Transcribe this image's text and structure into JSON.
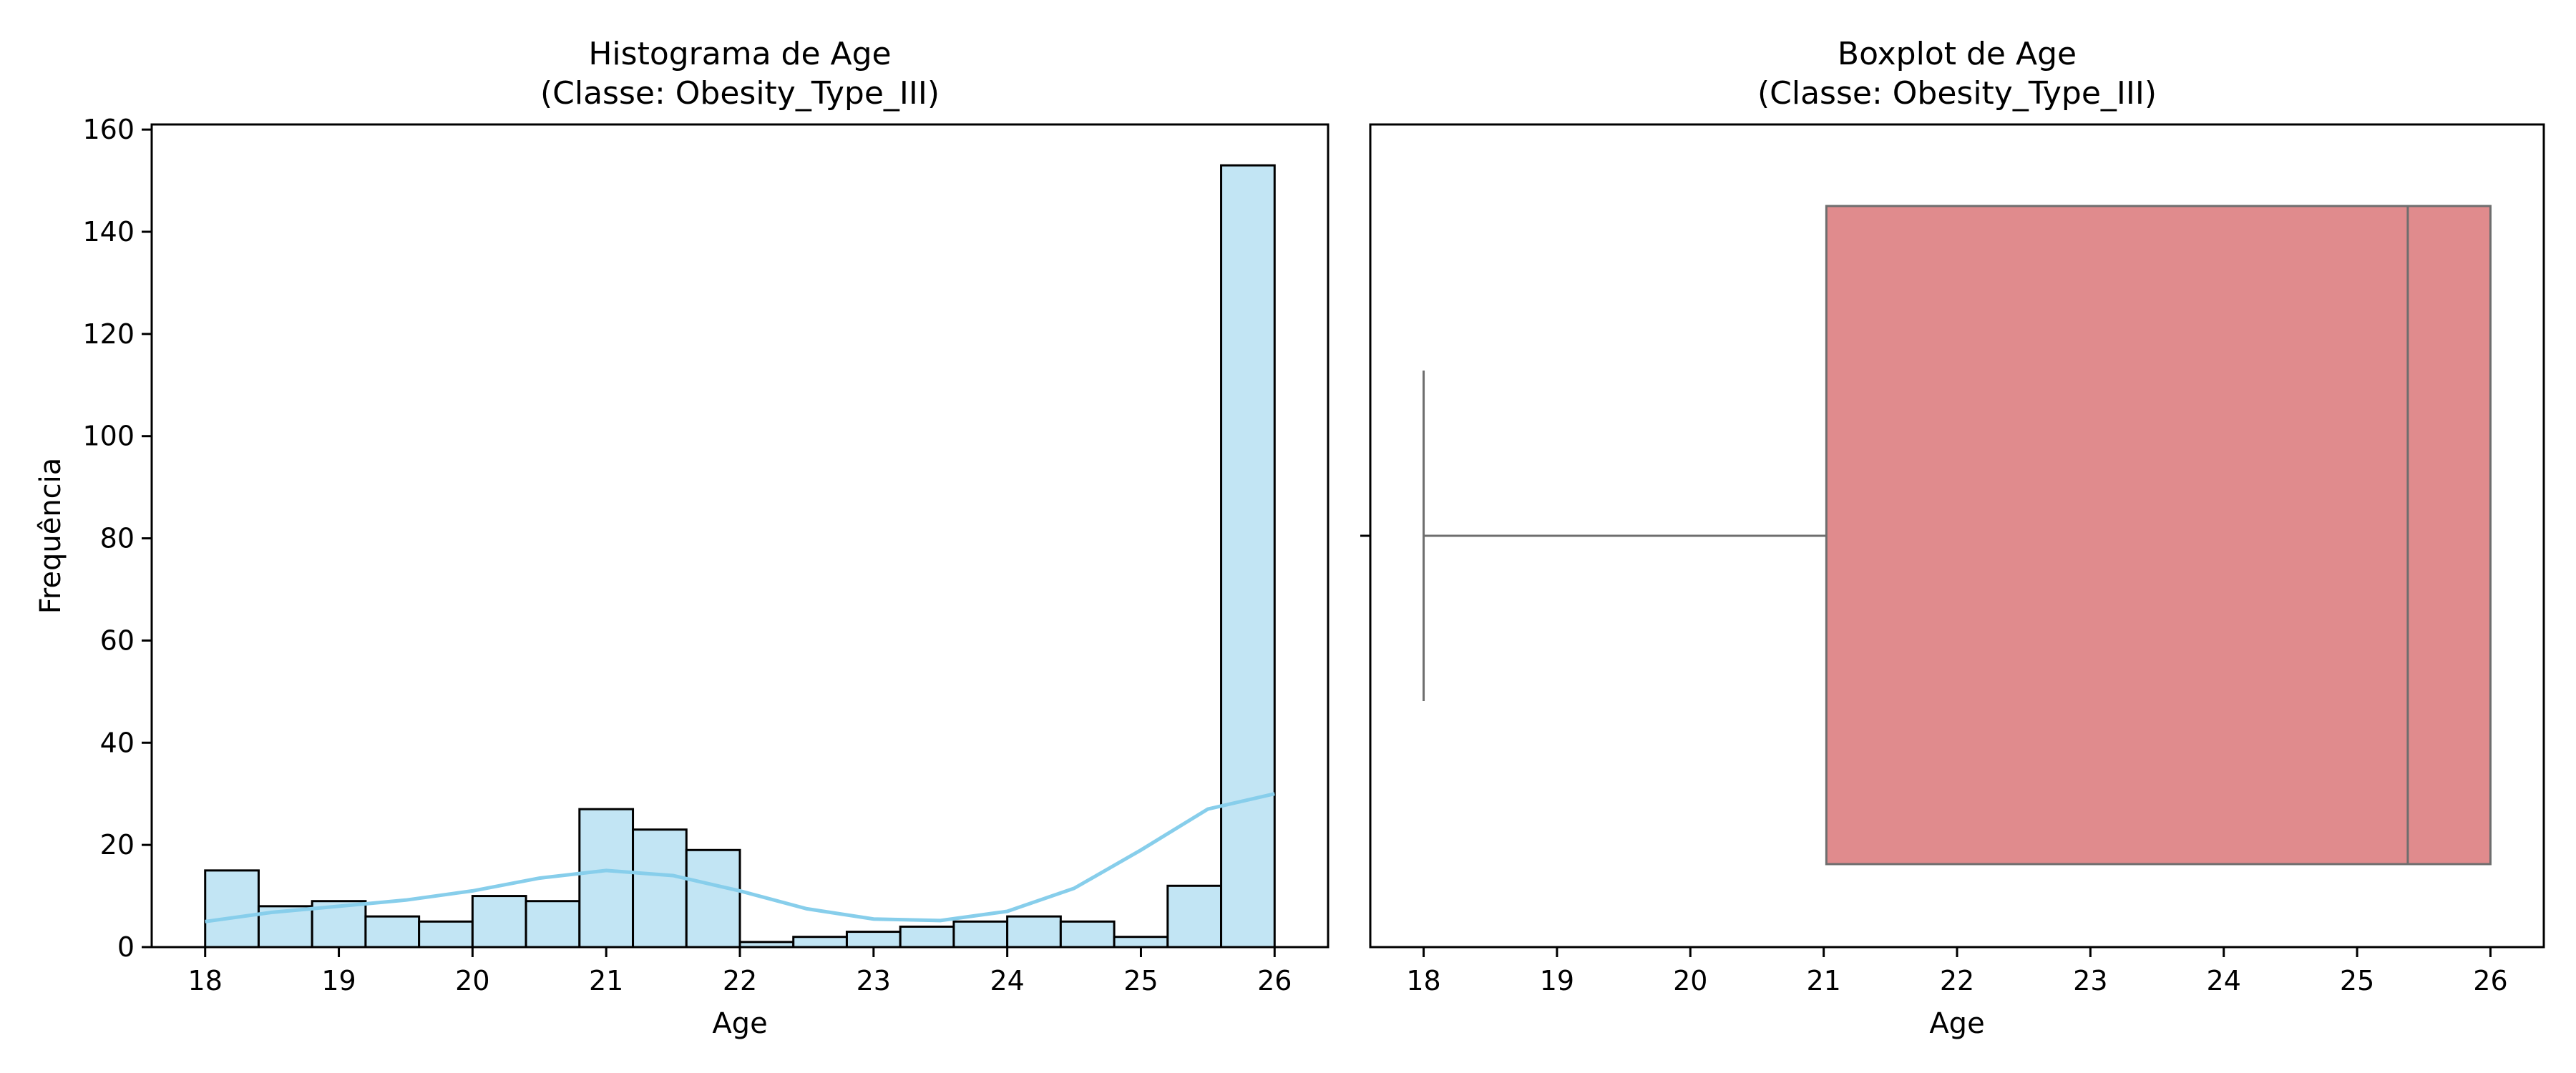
{
  "chart_data": [
    {
      "type": "bar",
      "title_line1": "Histograma de Age",
      "title_line2": "(Classe: Obesity_Type_III)",
      "xlabel": "Age",
      "ylabel": "Frequência",
      "xlim": [
        17.6,
        26.4
      ],
      "ylim": [
        0,
        161
      ],
      "xticks": [
        18,
        19,
        20,
        21,
        22,
        23,
        24,
        25,
        26
      ],
      "yticks": [
        0,
        20,
        40,
        60,
        80,
        100,
        120,
        140,
        160
      ],
      "bin_start": 18,
      "bin_width": 0.4,
      "values": [
        15,
        8,
        9,
        6,
        5,
        10,
        9,
        27,
        23,
        19,
        1,
        2,
        3,
        4,
        5,
        6,
        5,
        2,
        12,
        153
      ],
      "bar_color": "#c2e5f4",
      "edge_color": "#000000",
      "kde": {
        "color": "#87ceeb",
        "x": [
          18,
          18.5,
          19,
          19.5,
          20,
          20.5,
          21,
          21.5,
          22,
          22.5,
          23,
          23.5,
          24,
          24.5,
          25,
          25.5,
          26
        ],
        "y": [
          5,
          6.8,
          8,
          9.2,
          11,
          13.5,
          15,
          14,
          11,
          7.5,
          5.5,
          5.2,
          7,
          11.5,
          19,
          27,
          30
        ]
      }
    },
    {
      "type": "box",
      "title_line1": "Boxplot de Age",
      "title_line2": "(Classe: Obesity_Type_III)",
      "xlabel": "Age",
      "xlim": [
        17.6,
        26.4
      ],
      "xticks": [
        18,
        19,
        20,
        21,
        22,
        23,
        24,
        25,
        26
      ],
      "stats": {
        "whisker_low": 18,
        "q1": 21.02,
        "median": 25.38,
        "q3": 26,
        "whisker_high": 26
      },
      "box_color": "#e08b8d",
      "line_color": "#6e6e6e"
    }
  ]
}
